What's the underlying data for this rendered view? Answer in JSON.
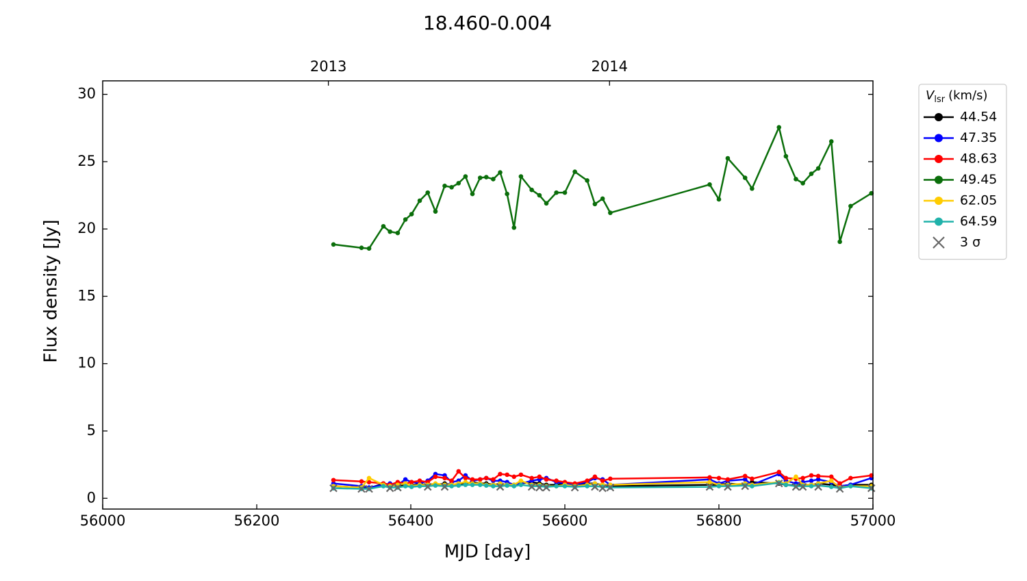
{
  "chart_data": {
    "type": "line",
    "title": "18.460-0.004",
    "x_label": "MJD [day]",
    "y_label": "Flux density [Jy]",
    "legend_title": {
      "symbol": "V",
      "subscript": "lsr",
      "unit": "(km/s)"
    },
    "legend": "outside-right",
    "xlim": [
      56000,
      57000
    ],
    "ylim": [
      -0.8,
      31
    ],
    "xticks": [
      56000,
      56200,
      56400,
      56600,
      56800,
      57000
    ],
    "yticks": [
      0,
      5,
      10,
      15,
      20,
      25,
      30
    ],
    "x2ticks": [
      {
        "value": 56293,
        "label": "2013"
      },
      {
        "value": 56658,
        "label": "2014"
      }
    ],
    "x": [
      56299.6,
      56336,
      56345.8,
      56364.4,
      56373,
      56383,
      56393,
      56401,
      56411.6,
      56422,
      56432,
      56444,
      56453,
      56462,
      56471,
      56480,
      56490,
      56498,
      56507,
      56516,
      56525,
      56534,
      56543,
      56557,
      56567,
      56576,
      56589,
      56600,
      56613,
      56629,
      56639,
      56649,
      56659,
      56788,
      56800,
      56811.5,
      56834,
      56843,
      56878,
      56887,
      56900,
      56909,
      56920,
      56929,
      56946,
      56957,
      56971,
      56998
    ],
    "series": [
      {
        "name": "44.54",
        "color": "#000000",
        "values": [
          0.9,
          0.8,
          0.75,
          1.1,
          1.0,
          0.9,
          1.0,
          0.95,
          1.05,
          1.0,
          1.0,
          1.1,
          1.0,
          1.05,
          1.1,
          1.2,
          1.1,
          1.1,
          1.0,
          1.1,
          1.0,
          1.0,
          1.1,
          1.2,
          1.1,
          1.0,
          1.0,
          1.1,
          1.0,
          1.1,
          1.1,
          1.0,
          0.9,
          1.0,
          1.0,
          1.1,
          1.0,
          1.2,
          1.1,
          1.0,
          0.95,
          1.0,
          1.0,
          1.1,
          1.0,
          0.9,
          1.0,
          1.0
        ]
      },
      {
        "name": "47.35",
        "color": "#0000ff",
        "values": [
          1.1,
          0.9,
          0.8,
          1.0,
          1.1,
          1.0,
          1.4,
          1.2,
          1.1,
          1.3,
          1.8,
          1.7,
          1.2,
          1.3,
          1.7,
          1.3,
          1.4,
          1.5,
          1.3,
          1.3,
          1.2,
          1.0,
          1.1,
          1.3,
          1.4,
          1.5,
          1.2,
          1.1,
          1.0,
          1.2,
          1.5,
          1.4,
          1.0,
          1.4,
          1.1,
          1.3,
          1.4,
          1.0,
          1.8,
          1.3,
          1.1,
          1.2,
          1.3,
          1.4,
          1.2,
          0.9,
          1.0,
          1.5
        ]
      },
      {
        "name": "48.63",
        "color": "#ff0000",
        "values": [
          1.35,
          1.25,
          1.2,
          1.1,
          1.0,
          1.2,
          1.1,
          1.2,
          1.3,
          1.2,
          1.6,
          1.5,
          1.3,
          2.0,
          1.5,
          1.4,
          1.4,
          1.5,
          1.4,
          1.8,
          1.75,
          1.6,
          1.75,
          1.5,
          1.6,
          1.4,
          1.3,
          1.2,
          1.1,
          1.3,
          1.6,
          1.3,
          1.45,
          1.55,
          1.5,
          1.4,
          1.65,
          1.45,
          1.95,
          1.5,
          1.45,
          1.5,
          1.7,
          1.65,
          1.6,
          1.1,
          1.5,
          1.7
        ]
      },
      {
        "name": "49.45",
        "color": "#0a6e0a",
        "values": [
          18.85,
          18.6,
          18.55,
          20.2,
          19.8,
          19.7,
          20.7,
          21.1,
          22.1,
          22.7,
          21.3,
          23.2,
          23.1,
          23.4,
          23.9,
          22.6,
          23.8,
          23.85,
          23.7,
          24.2,
          22.6,
          20.1,
          23.9,
          22.9,
          22.5,
          21.9,
          22.7,
          22.7,
          24.25,
          23.6,
          21.85,
          22.25,
          21.2,
          23.3,
          22.2,
          25.25,
          23.8,
          23.0,
          27.55,
          25.4,
          23.7,
          23.4,
          24.1,
          24.5,
          26.5,
          19.05,
          21.7,
          22.65
        ]
      },
      {
        "name": "62.05",
        "color": "#ffcc00",
        "values": [
          0.9,
          0.8,
          1.5,
          1.0,
          0.9,
          1.0,
          1.1,
          0.9,
          1.0,
          1.0,
          1.1,
          1.0,
          1.0,
          1.1,
          1.2,
          1.1,
          1.1,
          1.0,
          1.0,
          1.1,
          1.0,
          1.0,
          1.3,
          1.0,
          1.0,
          0.9,
          0.9,
          1.0,
          0.9,
          1.0,
          1.1,
          1.0,
          1.0,
          1.2,
          1.0,
          1.0,
          1.1,
          1.0,
          1.2,
          1.1,
          1.6,
          1.0,
          1.0,
          1.1,
          1.3,
          0.8,
          0.9,
          0.9
        ]
      },
      {
        "name": "64.59",
        "color": "#20b2aa",
        "values": [
          0.75,
          0.7,
          0.7,
          0.9,
          0.8,
          0.8,
          0.9,
          0.85,
          0.9,
          0.9,
          0.95,
          0.9,
          0.9,
          0.95,
          1.0,
          1.0,
          1.0,
          0.95,
          0.9,
          0.9,
          0.95,
          0.9,
          1.0,
          0.9,
          0.9,
          0.85,
          0.9,
          0.9,
          0.85,
          0.9,
          0.9,
          0.85,
          0.8,
          0.85,
          0.9,
          0.9,
          0.95,
          0.9,
          1.15,
          1.0,
          0.9,
          0.9,
          0.9,
          0.95,
          0.85,
          0.75,
          0.9,
          0.75
        ]
      },
      {
        "name": "3 σ",
        "color": "#666666",
        "marker": "x",
        "values": [
          0.75,
          0.7,
          0.7,
          null,
          0.75,
          0.8,
          null,
          null,
          null,
          0.85,
          null,
          0.85,
          null,
          null,
          null,
          null,
          null,
          null,
          null,
          0.85,
          null,
          null,
          null,
          0.85,
          0.8,
          0.8,
          null,
          null,
          0.8,
          null,
          0.85,
          0.75,
          0.8,
          0.85,
          null,
          0.85,
          0.9,
          null,
          1.1,
          null,
          0.85,
          0.85,
          null,
          0.85,
          null,
          0.7,
          null,
          0.75
        ]
      }
    ]
  }
}
